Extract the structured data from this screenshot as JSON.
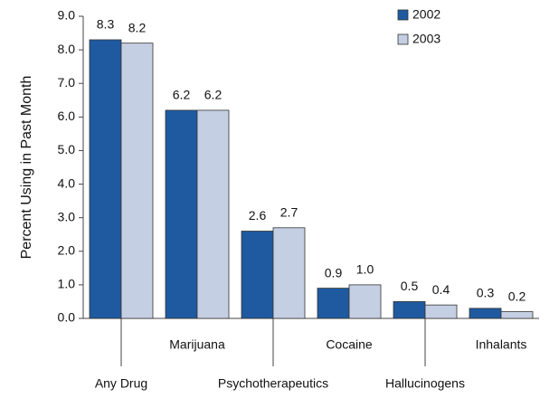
{
  "chart_data": {
    "type": "bar",
    "y_label": "Percent Using in Past Month",
    "categories": [
      "Any Drug",
      "Marijuana",
      "Psychotherapeutics",
      "Cocaine",
      "Hallucinogens",
      "Inhalants"
    ],
    "series": [
      {
        "name": "2002",
        "color": "#1f5aa0",
        "values": [
          8.3,
          6.2,
          2.6,
          0.9,
          0.5,
          0.3
        ],
        "value_labels": [
          "8.3",
          "6.2",
          "2.6",
          "0.9",
          "0.5",
          "0.3"
        ]
      },
      {
        "name": "2003",
        "color": "#c5cfe3",
        "values": [
          8.2,
          6.2,
          2.7,
          1.0,
          0.4,
          0.2
        ],
        "value_labels": [
          "8.2",
          "6.2",
          "2.7",
          "1.0",
          "0.4",
          "0.2"
        ]
      }
    ],
    "ylim": [
      0,
      9
    ],
    "yticks": [
      {
        "value": 0,
        "label": "0.0"
      },
      {
        "value": 1,
        "label": "1.0"
      },
      {
        "value": 2,
        "label": "2.0"
      },
      {
        "value": 3,
        "label": "3.0"
      },
      {
        "value": 4,
        "label": "4.0"
      },
      {
        "value": 5,
        "label": "5.0"
      },
      {
        "value": 6,
        "label": "6.0"
      },
      {
        "value": 7,
        "label": "7.0"
      },
      {
        "value": 8,
        "label": "8.0"
      },
      {
        "value": 9,
        "label": "9.0"
      }
    ],
    "legend": "top-right"
  }
}
